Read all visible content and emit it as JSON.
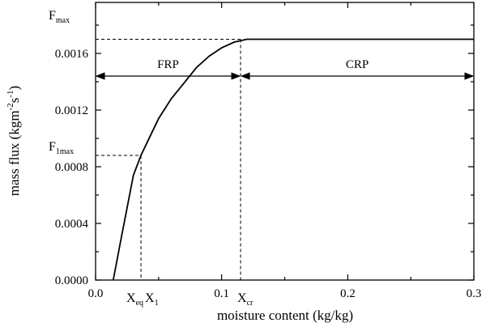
{
  "chart_data": {
    "type": "line",
    "xlabel": "moisture content (kg/kg)",
    "ylabel": "mass flux (kgm⁻²s⁻¹)",
    "xlim": [
      0.0,
      0.3
    ],
    "ylim": [
      0.0,
      0.00196
    ],
    "x_ticks": [
      {
        "value": 0.0,
        "label": "0.0"
      },
      {
        "value": 0.1,
        "label": "0.1"
      },
      {
        "value": 0.2,
        "label": "0.2"
      },
      {
        "value": 0.3,
        "label": "0.3"
      }
    ],
    "x_minor_ticks": [
      0.05,
      0.15,
      0.25
    ],
    "y_ticks": [
      {
        "value": 0.0,
        "label": "0.0000"
      },
      {
        "value": 0.0004,
        "label": "0.0004"
      },
      {
        "value": 0.0008,
        "label": "0.0008"
      },
      {
        "value": 0.0012,
        "label": "0.0012"
      },
      {
        "value": 0.0016,
        "label": "0.0016"
      }
    ],
    "y_minor_ticks": [
      0.0002,
      0.0006,
      0.001,
      0.0014,
      0.0018
    ],
    "series": [
      {
        "x": [
          0.014,
          0.02,
          0.025,
          0.03,
          0.036,
          0.043,
          0.05,
          0.06,
          0.07,
          0.08,
          0.09,
          0.1,
          0.11,
          0.115,
          0.12,
          0.13,
          0.15,
          0.2,
          0.25,
          0.3
        ],
        "y": [
          0.0,
          0.00028,
          0.00051,
          0.00074,
          0.00088,
          0.00101,
          0.00114,
          0.00128,
          0.00139,
          0.0015,
          0.00158,
          0.00164,
          0.00168,
          0.00169,
          0.0017,
          0.0017,
          0.0017,
          0.0017,
          0.0017,
          0.0017
        ]
      }
    ],
    "guides": {
      "x_eq": 0.036,
      "x_cr": 0.115,
      "f_1max": 0.00088,
      "f_max": 0.0017
    },
    "annotations": {
      "f_max": {
        "main": "F",
        "sub": "max"
      },
      "f_1max": {
        "main": "F",
        "sub": "1max"
      },
      "x_eq": {
        "main": "X",
        "sub": "eq"
      },
      "x_1": {
        "main": "X",
        "sub": "1"
      },
      "x_cr": {
        "main": "X",
        "sub": "cr"
      },
      "frp": "FRP",
      "crp": "CRP"
    },
    "regions": [
      {
        "label": "FRP",
        "from": 0.0,
        "to": 0.115
      },
      {
        "label": "CRP",
        "from": 0.115,
        "to": 0.3
      }
    ],
    "grid": false,
    "legend": "none"
  }
}
